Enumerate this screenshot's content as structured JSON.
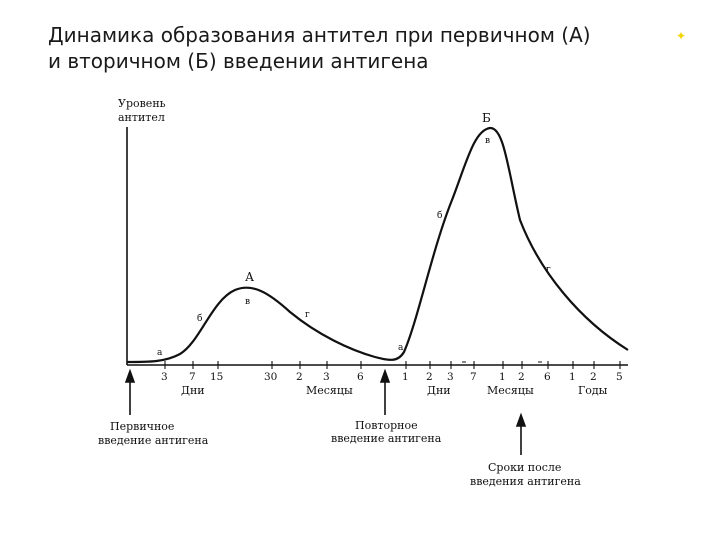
{
  "title": {
    "line1": "Динамика образования антител при первичном (А)",
    "line2": "и вторичном (Б) введении антигена"
  },
  "axis": {
    "y_label_line1": "Уровень",
    "y_label_line2": "антител"
  },
  "peaks": {
    "primary": "А",
    "secondary": "Б"
  },
  "phases": {
    "a": "а",
    "b": "б",
    "v": "в",
    "g": "г"
  },
  "ticks": {
    "days1": [
      "3",
      "7",
      "15"
    ],
    "months1": [
      "30",
      "2",
      "3",
      "6"
    ],
    "days2": [
      "1",
      "2",
      "3",
      "7"
    ],
    "months2": [
      "1",
      "2",
      "6"
    ],
    "years": [
      "1",
      "2",
      "5"
    ]
  },
  "units": {
    "days": "Дни",
    "months": "Месяцы",
    "years": "Годы"
  },
  "arrows": {
    "primary_line1": "Первичное",
    "primary_line2": "введение антигена",
    "repeat_line1": "Повторное",
    "repeat_line2": "введение антигена",
    "after_line1": "Сроки после",
    "after_line2": "введения антигена"
  },
  "colors": {
    "ink": "#111111",
    "title": "#1a1a1a",
    "accent": "#f2d400"
  }
}
